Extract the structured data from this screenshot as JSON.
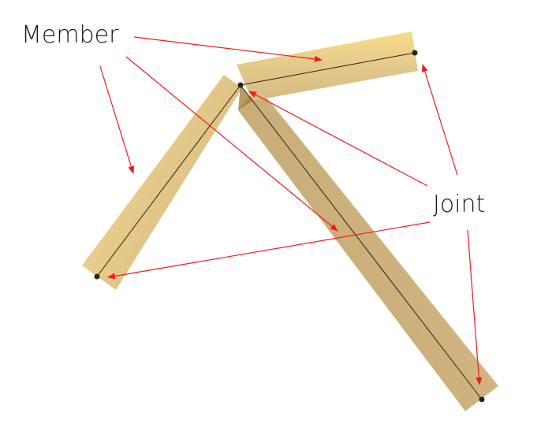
{
  "labels": {
    "member": "Member",
    "joint": "Joint"
  },
  "colors": {
    "beam_light": "#f6dc84",
    "beam_mid": "#dcc089",
    "beam_dark": "#c8ad79",
    "joint_shadow": "#9b7c2e",
    "centerline": "#2a2418",
    "arrow": "#ee1c1c",
    "text": "#1a1a1a"
  }
}
